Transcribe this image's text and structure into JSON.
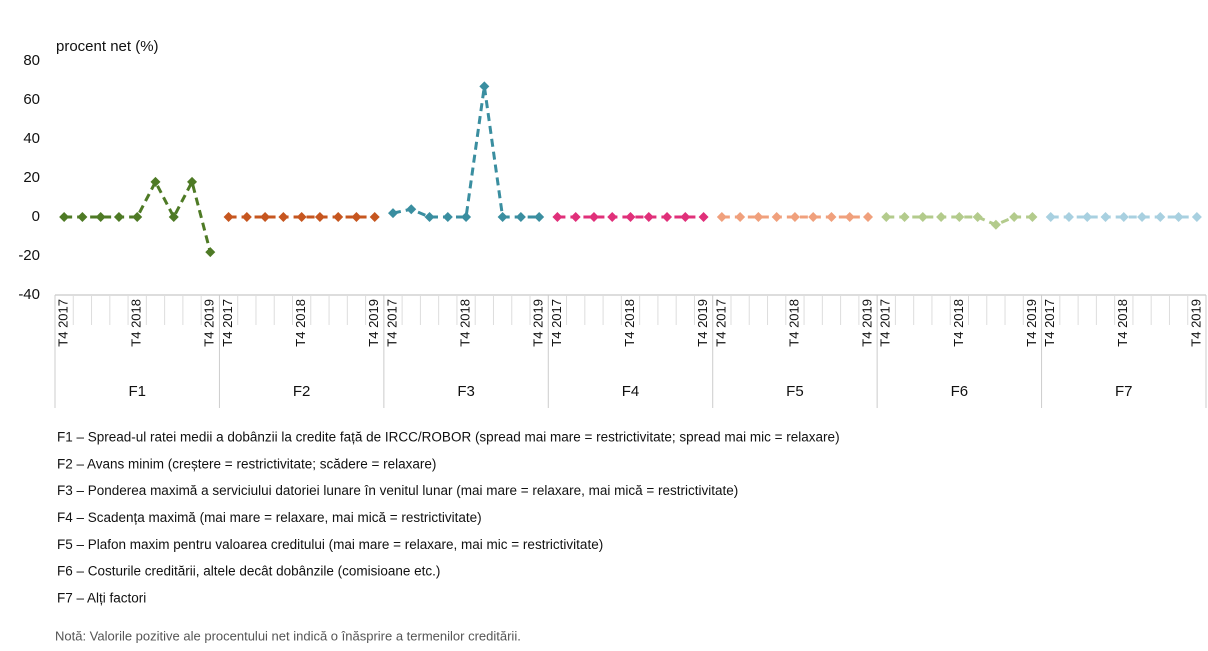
{
  "chart_data": {
    "type": "line",
    "y_label": "procent net (%)",
    "categories": [
      "T4 2017",
      null,
      null,
      null,
      "T4 2018",
      null,
      null,
      null,
      "T4 2019"
    ],
    "ylim": [
      -40,
      80
    ],
    "yticks": [
      -40,
      -20,
      0,
      20,
      40,
      60,
      80
    ],
    "series": [
      {
        "name": "F1",
        "color": "#4e7a25",
        "values": [
          0,
          0,
          0,
          0,
          0,
          18,
          0,
          18,
          -18
        ]
      },
      {
        "name": "F2",
        "color": "#c6561f",
        "values": [
          0,
          0,
          0,
          0,
          0,
          0,
          0,
          0,
          0
        ]
      },
      {
        "name": "F3",
        "color": "#3a8ea0",
        "values": [
          2,
          4,
          0,
          0,
          0,
          67,
          0,
          0,
          0
        ]
      },
      {
        "name": "F4",
        "color": "#e0307a",
        "values": [
          0,
          0,
          0,
          0,
          0,
          0,
          0,
          0,
          0
        ]
      },
      {
        "name": "F5",
        "color": "#f0a07c",
        "values": [
          0,
          0,
          0,
          0,
          0,
          0,
          0,
          0,
          0
        ]
      },
      {
        "name": "F6",
        "color": "#b3cb8c",
        "values": [
          0,
          0,
          0,
          0,
          0,
          0,
          -4,
          0,
          0
        ]
      },
      {
        "name": "F7",
        "color": "#a8d0e0",
        "values": [
          0,
          0,
          0,
          0,
          0,
          0,
          0,
          0,
          0
        ]
      }
    ],
    "descriptions": [
      "F1 – Spread-ul ratei medii a dobânzii  la credite față de IRCC/ROBOR (spread mai mare = restrictivitate; spread mai mic = relaxare)",
      "F2 – Avans minim (creștere = restrictivitate; scădere = relaxare)",
      "F3 – Ponderea maximă a serviciului datoriei lunare în venitul lunar (mai mare = relaxare, mai mică = restrictivitate)",
      "F4 – Scadența maximă (mai mare = relaxare, mai mică = restrictivitate)",
      "F5 – Plafon maxim pentru valoarea creditului (mai mare = relaxare, mai mic = restrictivitate)",
      "F6 – Costurile creditării, altele decât dobânzile  (comisioane etc.)",
      "F7 – Alți factori"
    ],
    "note": "Notă: Valorile pozitive ale procentului net indică o înăsprire a termenilor creditării."
  }
}
